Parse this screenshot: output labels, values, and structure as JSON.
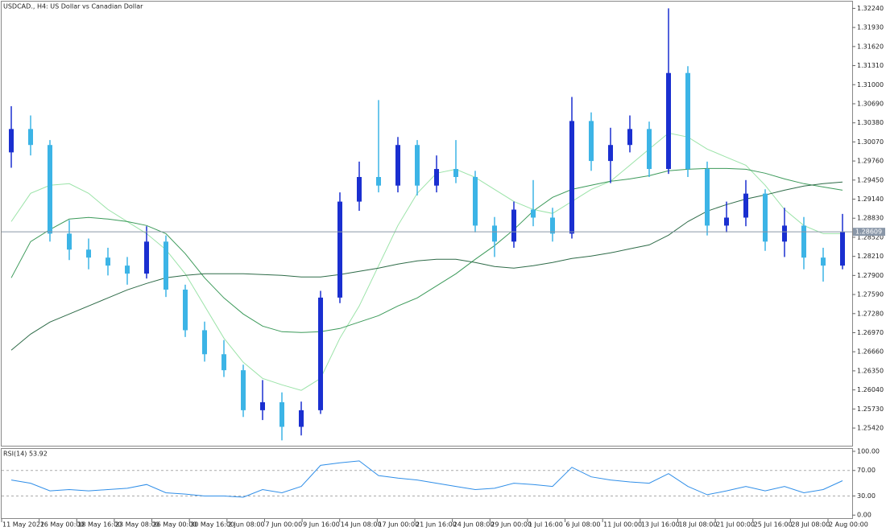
{
  "chart_data": {
    "type": "candlestick",
    "title": "USDCAD., H4:  US Dollar vs Canadian Dollar",
    "up_color": "#1a2fd0",
    "down_color": "#3cb4e6",
    "open": [
      1.299,
      1.3028,
      1.3002,
      1.2858,
      1.2832,
      1.2819,
      1.2806,
      1.2793,
      1.2845,
      1.2767,
      1.2701,
      1.2662,
      1.2636,
      1.2571,
      1.2584,
      1.2544,
      1.2571,
      1.2754,
      1.291,
      1.295,
      1.2936,
      1.3002,
      1.2936,
      1.2963,
      1.295,
      1.2871,
      1.2845,
      1.2897,
      1.2884,
      1.2858,
      1.3041,
      1.2976,
      1.3002,
      1.3028,
      1.2963,
      1.3119,
      1.2963,
      1.2871,
      1.2884,
      1.2923,
      1.2845,
      1.2871,
      1.2819,
      1.2806
    ],
    "high": [
      1.3065,
      1.305,
      1.301,
      1.288,
      1.285,
      1.2835,
      1.282,
      1.287,
      1.2855,
      1.2775,
      1.2715,
      1.2685,
      1.2645,
      1.262,
      1.26,
      1.2585,
      1.2765,
      1.2925,
      1.2975,
      1.3075,
      1.3015,
      1.301,
      1.2985,
      1.301,
      1.296,
      1.2885,
      1.291,
      1.2945,
      1.29,
      1.308,
      1.3055,
      1.303,
      1.305,
      1.304,
      1.3224,
      1.313,
      1.2975,
      1.291,
      1.2945,
      1.293,
      1.29,
      1.2885,
      1.2835,
      1.289
    ],
    "low": [
      1.2965,
      1.2985,
      1.2845,
      1.2815,
      1.28,
      1.279,
      1.2775,
      1.2785,
      1.2755,
      1.269,
      1.265,
      1.2625,
      1.256,
      1.2555,
      1.2522,
      1.253,
      1.2565,
      1.2745,
      1.2895,
      1.2925,
      1.2925,
      1.292,
      1.2925,
      1.294,
      1.286,
      1.282,
      1.2835,
      1.287,
      1.2845,
      1.285,
      1.296,
      1.294,
      1.299,
      1.295,
      1.2955,
      1.295,
      1.2855,
      1.286,
      1.287,
      1.283,
      1.282,
      1.28,
      1.278,
      1.28
    ],
    "close": [
      1.3028,
      1.3002,
      1.2858,
      1.2832,
      1.2819,
      1.2806,
      1.2793,
      1.2845,
      1.2767,
      1.2701,
      1.2662,
      1.2636,
      1.2571,
      1.2584,
      1.2544,
      1.2571,
      1.2754,
      1.291,
      1.295,
      1.2936,
      1.3002,
      1.2936,
      1.2963,
      1.295,
      1.2871,
      1.2845,
      1.2897,
      1.2884,
      1.2858,
      1.3041,
      1.2976,
      1.3002,
      1.3028,
      1.2963,
      1.3119,
      1.2963,
      1.2871,
      1.2884,
      1.2923,
      1.2845,
      1.2871,
      1.2819,
      1.2806,
      1.2861
    ],
    "moving_averages": [
      {
        "color": "#9be3a8",
        "values": [
          1.28776,
          1.29234,
          1.29365,
          1.29391,
          1.29234,
          1.28972,
          1.28776,
          1.2858,
          1.28319,
          1.27927,
          1.27404,
          1.26881,
          1.26489,
          1.26228,
          1.26123,
          1.26032,
          1.26228,
          1.26881,
          1.27404,
          1.28058,
          1.28711,
          1.29234,
          1.29561,
          1.29626,
          1.29495,
          1.29299,
          1.29103,
          1.28972,
          1.28907,
          1.29103,
          1.29299,
          1.2943,
          1.29691,
          1.29953,
          1.30214,
          1.30149,
          1.29953,
          1.29822,
          1.29691,
          1.29365,
          1.28972,
          1.28711,
          1.2858,
          1.2858
        ]
      },
      {
        "color": "#3c9a5a",
        "values": [
          1.27862,
          1.2845,
          1.28646,
          1.28816,
          1.28842,
          1.28816,
          1.28776,
          1.28711,
          1.2858,
          1.28254,
          1.27862,
          1.27535,
          1.27273,
          1.27077,
          1.26986,
          1.26973,
          1.26986,
          1.27038,
          1.27143,
          1.27247,
          1.27404,
          1.27535,
          1.27731,
          1.27927,
          1.28162,
          1.28384,
          1.28646,
          1.28946,
          1.29169,
          1.29299,
          1.29365,
          1.2943,
          1.29469,
          1.29521,
          1.296,
          1.29626,
          1.29639,
          1.29639,
          1.29626,
          1.29561,
          1.29469,
          1.29391,
          1.29338,
          1.29286
        ]
      },
      {
        "color": "#2e6b48",
        "values": [
          1.26685,
          1.26947,
          1.27143,
          1.27273,
          1.27404,
          1.27535,
          1.27665,
          1.2777,
          1.27862,
          1.27901,
          1.27927,
          1.27927,
          1.27927,
          1.27914,
          1.27901,
          1.27875,
          1.27875,
          1.27914,
          1.27966,
          1.28018,
          1.28084,
          1.28136,
          1.28162,
          1.28162,
          1.2811,
          1.28045,
          1.28018,
          1.28058,
          1.2811,
          1.28175,
          1.28214,
          1.28267,
          1.28332,
          1.28397,
          1.28554,
          1.28776,
          1.28946,
          1.29051,
          1.29142,
          1.29208,
          1.29286,
          1.29352,
          1.29391,
          1.29417
        ]
      }
    ],
    "ylim": [
      1.2512,
      1.3235
    ],
    "yticks": [
      {
        "value": 1.3224,
        "label": "1.32240"
      },
      {
        "value": 1.3193,
        "label": "1.31930"
      },
      {
        "value": 1.3162,
        "label": "1.31620"
      },
      {
        "value": 1.3131,
        "label": "1.31310"
      },
      {
        "value": 1.31,
        "label": "1.31000"
      },
      {
        "value": 1.3069,
        "label": "1.30690"
      },
      {
        "value": 1.3038,
        "label": "1.30380"
      },
      {
        "value": 1.3007,
        "label": "1.30070"
      },
      {
        "value": 1.2976,
        "label": "1.29760"
      },
      {
        "value": 1.2945,
        "label": "1.29450"
      },
      {
        "value": 1.2914,
        "label": "1.29140"
      },
      {
        "value": 1.2883,
        "label": "1.28830"
      },
      {
        "value": 1.2852,
        "label": "1.28520"
      },
      {
        "value": 1.2821,
        "label": "1.28210"
      },
      {
        "value": 1.279,
        "label": "1.27900"
      },
      {
        "value": 1.2759,
        "label": "1.27590"
      },
      {
        "value": 1.2728,
        "label": "1.27280"
      },
      {
        "value": 1.2697,
        "label": "1.26970"
      },
      {
        "value": 1.2666,
        "label": "1.26660"
      },
      {
        "value": 1.2635,
        "label": "1.26350"
      },
      {
        "value": 1.2604,
        "label": "1.26040"
      },
      {
        "value": 1.2573,
        "label": "1.25730"
      },
      {
        "value": 1.2542,
        "label": "1.25420"
      }
    ],
    "last_price": 1.28609,
    "x_labels": [
      "11 May 2022",
      "16 May 00:00",
      "18 May 16:00",
      "23 May 08:00",
      "26 May 00:00",
      "30 May 16:00",
      "2 Jun 08:00",
      "7 Jun 00:00",
      "9 Jun 16:00",
      "14 Jun 08:00",
      "17 Jun 00:00",
      "21 Jun 16:00",
      "24 Jun 08:00",
      "29 Jun 00:00",
      "1 Jul 16:00",
      "6 Jul 08:00",
      "11 Jul 00:00",
      "13 Jul 16:00",
      "18 Jul 08:00",
      "21 Jul 00:00",
      "25 Jul 16:00",
      "28 Jul 08:00",
      "2 Aug 00:00"
    ],
    "rsi": {
      "label": "RSI(14) 53.92",
      "color": "#2f8ee8",
      "ylim": [
        -6,
        105
      ],
      "yticks": [
        {
          "value": 100,
          "label": "100.00"
        },
        {
          "value": 70,
          "label": "70.00"
        },
        {
          "value": 30,
          "label": "30.00"
        },
        {
          "value": 0,
          "label": "0.00"
        }
      ],
      "levels": [
        70,
        30
      ],
      "values": [
        55,
        50,
        38,
        40,
        38,
        40,
        42,
        48,
        35,
        33,
        30,
        30,
        28,
        40,
        35,
        45,
        78,
        82,
        85,
        62,
        58,
        55,
        50,
        45,
        40,
        42,
        50,
        48,
        45,
        75,
        60,
        55,
        52,
        50,
        65,
        45,
        32,
        38,
        45,
        38,
        45,
        35,
        40,
        53.92
      ]
    }
  }
}
